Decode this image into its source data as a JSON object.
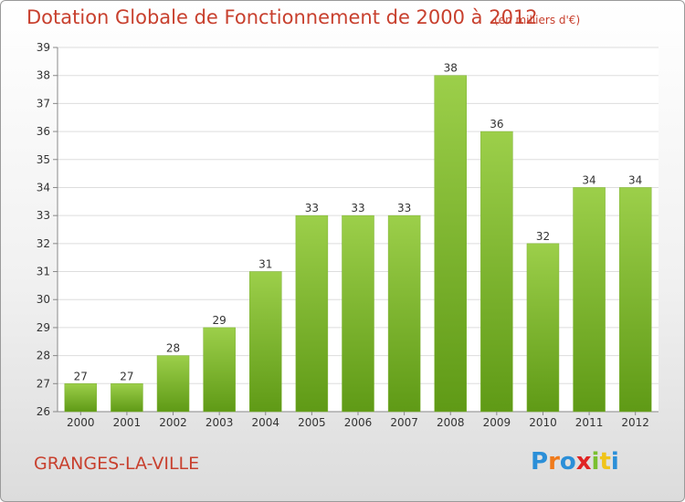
{
  "title": "Dotation Globale de Fonctionnement de 2000 à 2012",
  "unit_label": "(en milliers d'€)",
  "city": "GRANGES-LA-VILLE",
  "logo": {
    "letters": [
      "P",
      "r",
      "o",
      "x",
      "i",
      "t",
      "i"
    ],
    "colors": [
      "#2b8fd8",
      "#f07a1a",
      "#2b8fd8",
      "#e02424",
      "#7ac02f",
      "#f0c419",
      "#2b8fd8"
    ]
  },
  "chart_data": {
    "type": "bar",
    "title": "Dotation Globale de Fonctionnement de 2000 à 2012",
    "subtitle": "(en milliers d'€)",
    "categories": [
      "2000",
      "2001",
      "2002",
      "2003",
      "2004",
      "2005",
      "2006",
      "2007",
      "2008",
      "2009",
      "2010",
      "2011",
      "2012"
    ],
    "values": [
      27,
      27,
      28,
      29,
      31,
      33,
      33,
      33,
      38,
      36,
      32,
      34,
      34
    ],
    "ylim": [
      26,
      39
    ],
    "yticks": [
      26,
      27,
      28,
      29,
      30,
      31,
      32,
      33,
      34,
      35,
      36,
      37,
      38,
      39
    ],
    "grid": true,
    "colors": {
      "bar_top": "#9ccf4a",
      "bar_bottom": "#5f9a16",
      "grid": "#dddddd"
    }
  }
}
